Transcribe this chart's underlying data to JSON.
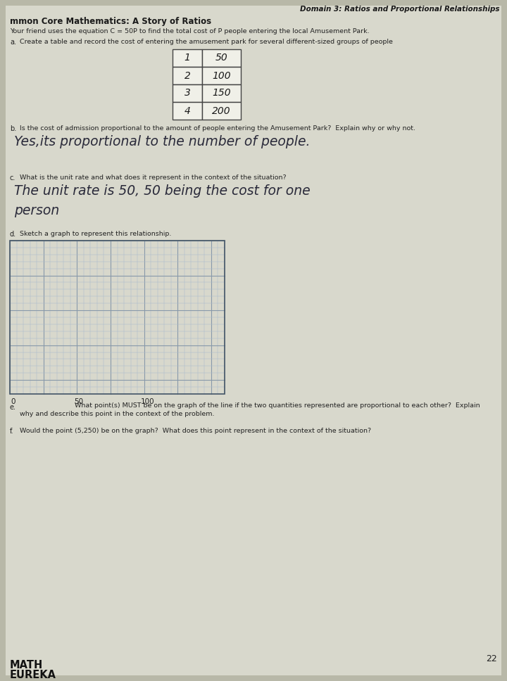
{
  "bg_color": "#b8b8a8",
  "paper_color": "#d8d8cc",
  "header_right": "Domain 3: Ratios and Proportional Relationships",
  "header_left": "mmon Core Mathematics: A Story of Ratios",
  "intro_line1": "Your friend uses the equation C = 50P to find the total cost of P people entering the local Amusement Park.",
  "part_a_label": "a.",
  "part_a_text": "Create a table and record the cost of entering the amusement park for several different-sized groups of people",
  "table_col1": [
    "1",
    "2",
    "3",
    "4"
  ],
  "table_col2": [
    "50",
    "100",
    "150",
    "200"
  ],
  "part_b_label": "b.",
  "part_b_text": "Is the cost of admission proportional to the amount of people entering the Amusement Park?  Explain why or why not.",
  "part_b_answer_line1": "Yes,its proportional to the number of people.",
  "part_c_label": "c.",
  "part_c_text": "What is the unit rate and what does it represent in the context of the situation?",
  "part_c_answer_line1": "The unit rate is 50, 50 being the cost for one",
  "part_c_answer_line2": "person",
  "part_d_label": "d.",
  "part_d_text": "Sketch a graph to represent this relationship.",
  "part_e_label": "e.",
  "part_e_text1": "What point(s) MUST be on the graph of the line if the two quantities represented are proportional to each other?  Explain",
  "part_e_text2": "why and describe this point in the context of the problem.",
  "part_f_label": "f.",
  "part_f_text": "Would the point (5,250) be on the graph?  What does this point represent in the context of the situation?",
  "page_number": "22",
  "graph_n_cols": 32,
  "graph_n_rows": 22
}
